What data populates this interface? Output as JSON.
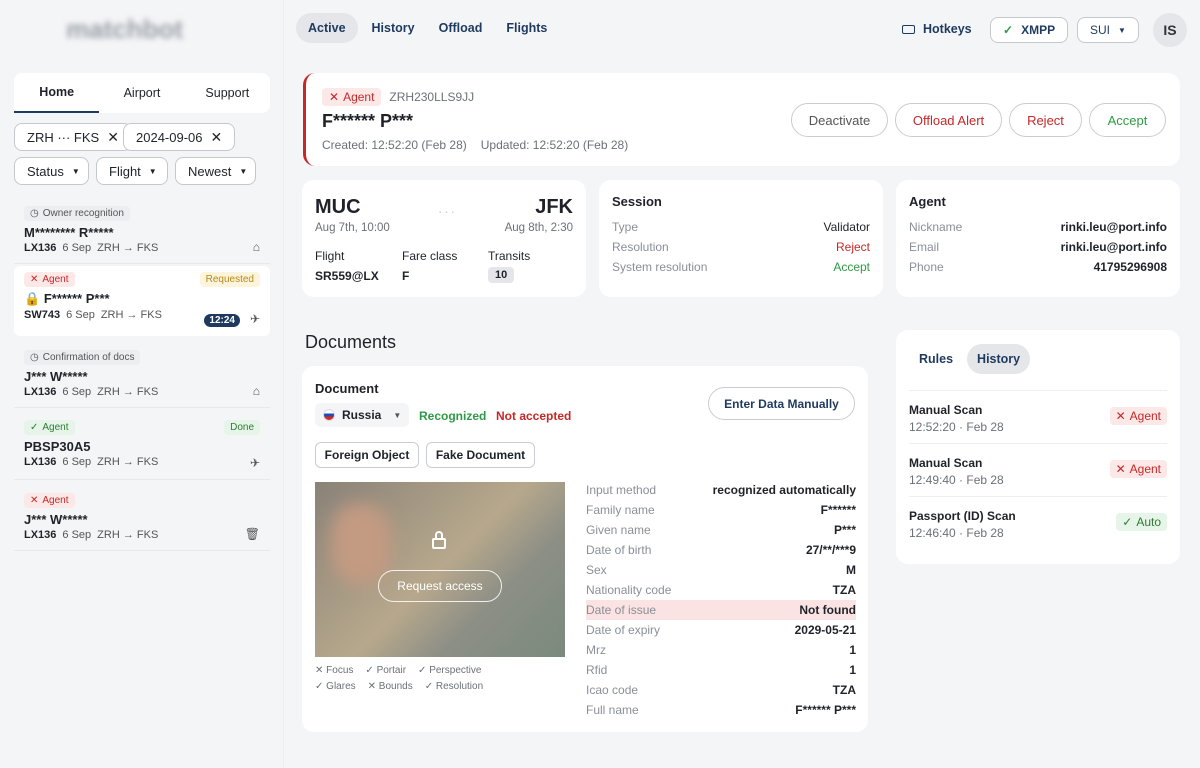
{
  "topbar": {
    "logo": "matchbot",
    "nav": [
      {
        "label": "Active"
      },
      {
        "label": "History"
      },
      {
        "label": "Offload"
      },
      {
        "label": "Flights"
      }
    ],
    "hotkeys": "Hotkeys",
    "xmpp": "XMPP",
    "lang": "SUI",
    "avatar": "IS"
  },
  "sidebar": {
    "tabs": [
      {
        "label": "Home"
      },
      {
        "label": "Airport"
      },
      {
        "label": "Support"
      }
    ],
    "filters": {
      "route": "ZRH ··· FKS",
      "date": "2024-09-06"
    },
    "dropdowns": [
      {
        "label": "Status"
      },
      {
        "label": "Flight"
      },
      {
        "label": "Newest"
      }
    ],
    "items": [
      {
        "badge": "Owner recognition",
        "name": "M******** R*****",
        "flight": "LX136",
        "date": "6 Sep",
        "route": "ZRH → FKS"
      },
      {
        "badge": "Agent",
        "status": "Requested",
        "name": "F****** P***",
        "flight": "SW743",
        "date": "6 Sep",
        "route": "ZRH → FKS",
        "time": "12:24"
      },
      {
        "badge": "Confirmation of docs",
        "name": "J*** W*****",
        "flight": "LX136",
        "date": "6 Sep",
        "route": "ZRH → FKS"
      },
      {
        "badge": "Agent",
        "status": "Done",
        "name": "PBSP30A5",
        "flight": "LX136",
        "date": "6 Sep",
        "route": "ZRH → FKS"
      },
      {
        "badge": "Agent",
        "name": "J*** W*****",
        "flight": "LX136",
        "date": "6 Sep",
        "route": "ZRH → FKS"
      }
    ]
  },
  "header": {
    "badge": "Agent",
    "code": "ZRH230LLS9JJ",
    "name": "F****** P***",
    "created": "Created: 12:52:20 (Feb 28)",
    "updated": "Updated: 12:52:20 (Feb 28)",
    "buttons": {
      "deactivate": "Deactivate",
      "offload": "Offload Alert",
      "reject": "Reject",
      "accept": "Accept"
    }
  },
  "flight_card": {
    "from": "MUC",
    "to": "JFK",
    "dep": "Aug 7th, 10:00",
    "arr": "Aug 8th, 2:30",
    "flight_label": "Flight",
    "flight": "SR559@LX",
    "fare_label": "Fare class",
    "fare": "F",
    "transits_label": "Transits",
    "transits": "10"
  },
  "session": {
    "title": "Session",
    "rows": [
      {
        "k": "Type",
        "v": "Validator"
      },
      {
        "k": "Resolution",
        "v": "Reject"
      },
      {
        "k": "System resolution",
        "v": "Accept"
      }
    ]
  },
  "agent": {
    "title": "Agent",
    "rows": [
      {
        "k": "Nickname",
        "v": "rinki.leu@port.info"
      },
      {
        "k": "Email",
        "v": "rinki.leu@port.info"
      },
      {
        "k": "Phone",
        "v": "41795296908"
      }
    ]
  },
  "documents": {
    "heading": "Documents",
    "doc_label": "Document",
    "country": "Russia",
    "recognized": "Recognized",
    "not_accepted": "Not accepted",
    "enter_manually": "Enter Data Manually",
    "foreign": "Foreign Object",
    "fake": "Fake Document",
    "request_access": "Request access",
    "checks": [
      "Focus",
      "Portair",
      "Perspective",
      "Glares",
      "Bounds",
      "Resolution"
    ],
    "fields": [
      {
        "k": "Input method",
        "v": "recognized automatically"
      },
      {
        "k": "Family name",
        "v": "F******"
      },
      {
        "k": "Given name",
        "v": "P***"
      },
      {
        "k": "Date of birth",
        "v": "27/**/***9"
      },
      {
        "k": "Sex",
        "v": "M"
      },
      {
        "k": "Nationality code",
        "v": "TZA"
      },
      {
        "k": "Date of issue",
        "v": "Not found"
      },
      {
        "k": "Date of expiry",
        "v": "2029-05-21"
      },
      {
        "k": "Mrz",
        "v": "1"
      },
      {
        "k": "Rfid",
        "v": "1"
      },
      {
        "k": "Icao code",
        "v": "TZA"
      },
      {
        "k": "Full name",
        "v": "F****** P***"
      }
    ]
  },
  "history_panel": {
    "tabs": [
      {
        "label": "Rules"
      },
      {
        "label": "History"
      }
    ],
    "items": [
      {
        "title": "Manual Scan",
        "time": "12:52:20 · Feb 28",
        "badge": "Agent"
      },
      {
        "title": "Manual Scan",
        "time": "12:49:40 · Feb 28",
        "badge": "Agent"
      },
      {
        "title": "Passport (ID) Scan",
        "time": "12:46:40 · Feb 28",
        "badge": "Auto"
      }
    ]
  }
}
